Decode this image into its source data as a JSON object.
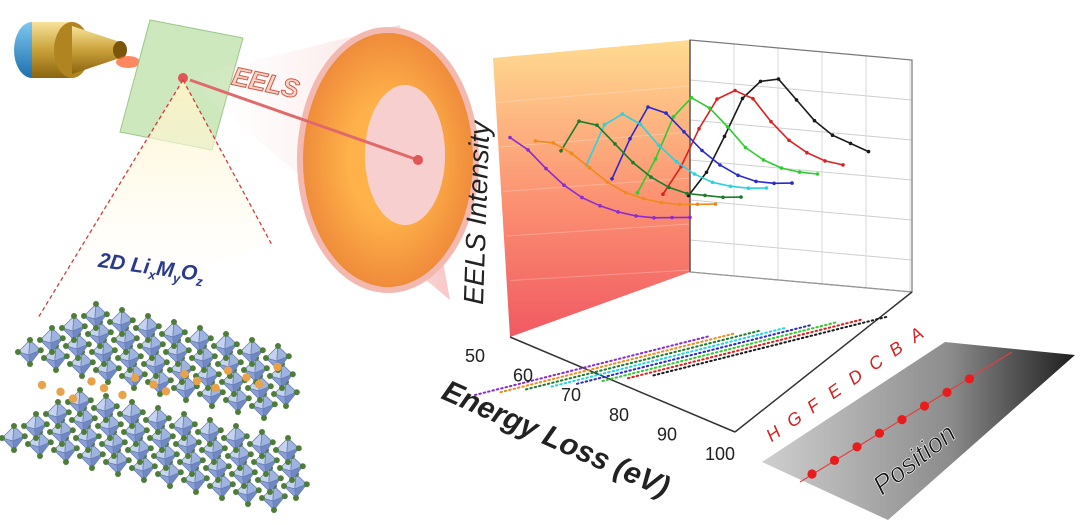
{
  "labels": {
    "technique": "EELS",
    "material_prefix": "2D Li",
    "sub_x": "x",
    "m": "M",
    "sub_y": "y",
    "o": "O",
    "sub_z": "z",
    "y_axis": "EELS Intensity",
    "x_axis": "Energy Loss (eV)",
    "position": "Position"
  },
  "colors": {
    "cone": "#ef8a8a",
    "disk": "#f0a64a",
    "sample_plane": "#c9e6b8",
    "octahedron": "#9fb3df",
    "oxygen": "#4e7d3a",
    "lithium": "#e8a24a",
    "beam": "#e05555",
    "label_red": "#d42020"
  },
  "chart_data": {
    "type": "line",
    "title": "",
    "xlabel": "Energy Loss (eV)",
    "ylabel": "EELS Intensity",
    "zlabel": "Position",
    "x_ticks": [
      50,
      60,
      70,
      80,
      90,
      100
    ],
    "xlim": [
      50,
      100
    ],
    "positions": [
      "A",
      "B",
      "C",
      "D",
      "E",
      "F",
      "G",
      "H"
    ],
    "series": [
      {
        "name": "A",
        "color": "#1a1a1a",
        "values": [
          0.58,
          0.66,
          0.8,
          0.95,
          1.0,
          0.98,
          0.85,
          0.72,
          0.62,
          0.55,
          0.48
        ]
      },
      {
        "name": "B",
        "color": "#e11e1e",
        "values": [
          0.6,
          0.7,
          0.85,
          0.96,
          0.97,
          0.9,
          0.76,
          0.64,
          0.55,
          0.48,
          0.43
        ]
      },
      {
        "name": "C",
        "color": "#2ecc2e",
        "values": [
          0.62,
          0.75,
          0.92,
          0.98,
          0.9,
          0.78,
          0.65,
          0.56,
          0.49,
          0.44,
          0.4
        ]
      },
      {
        "name": "D",
        "color": "#2a2ac8",
        "values": [
          0.7,
          0.86,
          0.98,
          0.92,
          0.8,
          0.68,
          0.58,
          0.5,
          0.44,
          0.4,
          0.37
        ]
      },
      {
        "name": "E",
        "color": "#26d4e0",
        "values": [
          0.78,
          0.94,
          0.96,
          0.88,
          0.75,
          0.64,
          0.55,
          0.48,
          0.43,
          0.39,
          0.36
        ]
      },
      {
        "name": "F",
        "color": "#1f7a2a",
        "values": [
          0.86,
          0.97,
          0.92,
          0.8,
          0.68,
          0.58,
          0.5,
          0.44,
          0.4,
          0.36,
          0.33
        ]
      },
      {
        "name": "G",
        "color": "#f08a1a",
        "values": [
          0.92,
          0.88,
          0.8,
          0.7,
          0.6,
          0.52,
          0.46,
          0.41,
          0.37,
          0.34,
          0.31
        ]
      },
      {
        "name": "H",
        "color": "#8a2ad0",
        "values": [
          0.95,
          0.86,
          0.74,
          0.63,
          0.54,
          0.47,
          0.41,
          0.36,
          0.32,
          0.29,
          0.26
        ]
      }
    ]
  }
}
